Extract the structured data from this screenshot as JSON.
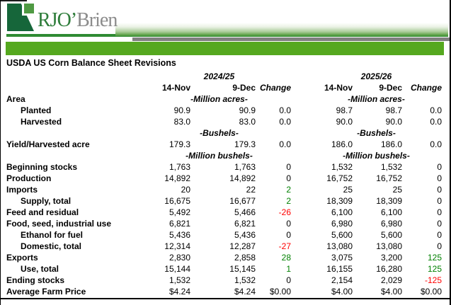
{
  "logo": {
    "rjo": "RJO",
    "apostrophe": "’",
    "brien": "Brien"
  },
  "title": "USDA US Corn Balance Sheet Revisions",
  "colors": {
    "brand_bar_green": "#55a81f",
    "underline_green": "#2f8b33",
    "gray_bar": "#7f7f7f",
    "logo_icon_dark_green": "#16663a",
    "logo_icon_light_green": "#4f9a43",
    "logo_text_green": "#2e7d3a",
    "logo_text_gray": "#8c8c8c",
    "positive_change": "#008000",
    "negative_change": "#ff0000"
  },
  "table": {
    "group_headers": [
      "2024/25",
      "2025/26"
    ],
    "col_headers": [
      "14-Nov",
      "9-Dec",
      "Change"
    ],
    "rows": [
      {
        "type": "units",
        "label": "Area",
        "unit": "-Million acres-"
      },
      {
        "type": "data",
        "label": "Planted",
        "indent": true,
        "g1": [
          "90.9",
          "90.9",
          "0.0"
        ],
        "g2": [
          "98.7",
          "98.7",
          "0.0"
        ]
      },
      {
        "type": "data",
        "label": "Harvested",
        "indent": true,
        "g1": [
          "83.0",
          "83.0",
          "0.0"
        ],
        "g2": [
          "90.0",
          "90.0",
          "0.0"
        ]
      },
      {
        "type": "units",
        "label": "",
        "unit": "-Bushels-"
      },
      {
        "type": "data",
        "label": "Yield/Harvested acre",
        "indent": false,
        "g1": [
          "179.3",
          "179.3",
          "0.0"
        ],
        "g2": [
          "186.0",
          "186.0",
          "0.0"
        ]
      },
      {
        "type": "units",
        "label": "",
        "unit": "-Million bushels-"
      },
      {
        "type": "data",
        "label": "Beginning stocks",
        "indent": false,
        "g1": [
          "1,763",
          "1,763",
          "0"
        ],
        "g2": [
          "1,532",
          "1,532",
          "0"
        ]
      },
      {
        "type": "data",
        "label": "Production",
        "indent": false,
        "g1": [
          "14,892",
          "14,892",
          "0"
        ],
        "g2": [
          "16,752",
          "16,752",
          "0"
        ]
      },
      {
        "type": "data",
        "label": "Imports",
        "indent": false,
        "g1": [
          "20",
          "22",
          "2"
        ],
        "g2": [
          "25",
          "25",
          "0"
        ]
      },
      {
        "type": "data",
        "label": "Supply, total",
        "indent": true,
        "g1": [
          "16,675",
          "16,677",
          "2"
        ],
        "g2": [
          "18,309",
          "18,309",
          "0"
        ]
      },
      {
        "type": "data",
        "label": "Feed and residual",
        "indent": false,
        "g1": [
          "5,492",
          "5,466",
          "-26"
        ],
        "g2": [
          "6,100",
          "6,100",
          "0"
        ]
      },
      {
        "type": "data",
        "label": "Food, seed, industrial use",
        "indent": false,
        "g1": [
          "6,821",
          "6,821",
          "0"
        ],
        "g2": [
          "6,980",
          "6,980",
          "0"
        ]
      },
      {
        "type": "data",
        "label": "Ethanol for fuel",
        "indent": true,
        "g1": [
          "5,436",
          "5,436",
          "0"
        ],
        "g2": [
          "5,600",
          "5,600",
          "0"
        ]
      },
      {
        "type": "data",
        "label": "Domestic, total",
        "indent": true,
        "g1": [
          "12,314",
          "12,287",
          "-27"
        ],
        "g2": [
          "13,080",
          "13,080",
          "0"
        ]
      },
      {
        "type": "data",
        "label": "Exports",
        "indent": false,
        "g1": [
          "2,830",
          "2,858",
          "28"
        ],
        "g2": [
          "3,075",
          "3,200",
          "125"
        ]
      },
      {
        "type": "data",
        "label": "Use, total",
        "indent": true,
        "g1": [
          "15,144",
          "15,145",
          "1"
        ],
        "g2": [
          "16,155",
          "16,280",
          "125"
        ]
      },
      {
        "type": "data",
        "label": "Ending stocks",
        "indent": false,
        "g1": [
          "1,532",
          "1,532",
          "0"
        ],
        "g2": [
          "2,154",
          "2,029",
          "-125"
        ]
      },
      {
        "type": "data",
        "label": "Average Farm Price",
        "indent": false,
        "g1": [
          "$4.24",
          "$4.24",
          "$0.00"
        ],
        "g2": [
          "$4.00",
          "$4.00",
          "$0.00"
        ]
      }
    ]
  }
}
